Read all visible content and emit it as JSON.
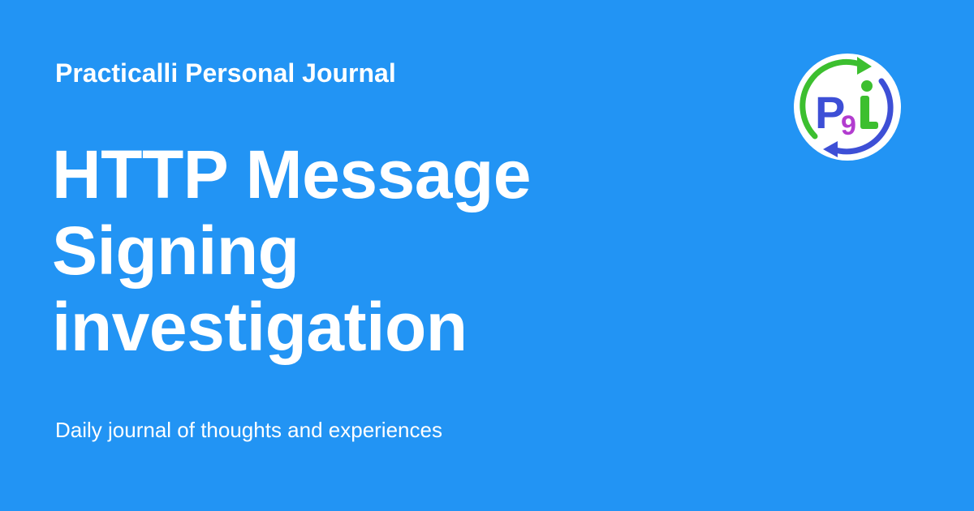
{
  "header": {
    "site_name": "Practicalli Personal Journal"
  },
  "main": {
    "title_lines": [
      "HTTP Message",
      "Signing",
      "investigation"
    ],
    "tagline": "Daily journal of thoughts and experiences"
  },
  "logo": {
    "icon": "practicalli-logo-icon",
    "text": "P9i"
  },
  "colors": {
    "background": "#2294f4",
    "text": "#ffffff",
    "logo_blue": "#3d4fd6",
    "logo_green": "#3cbf2f",
    "logo_purple": "#b23ccf"
  }
}
